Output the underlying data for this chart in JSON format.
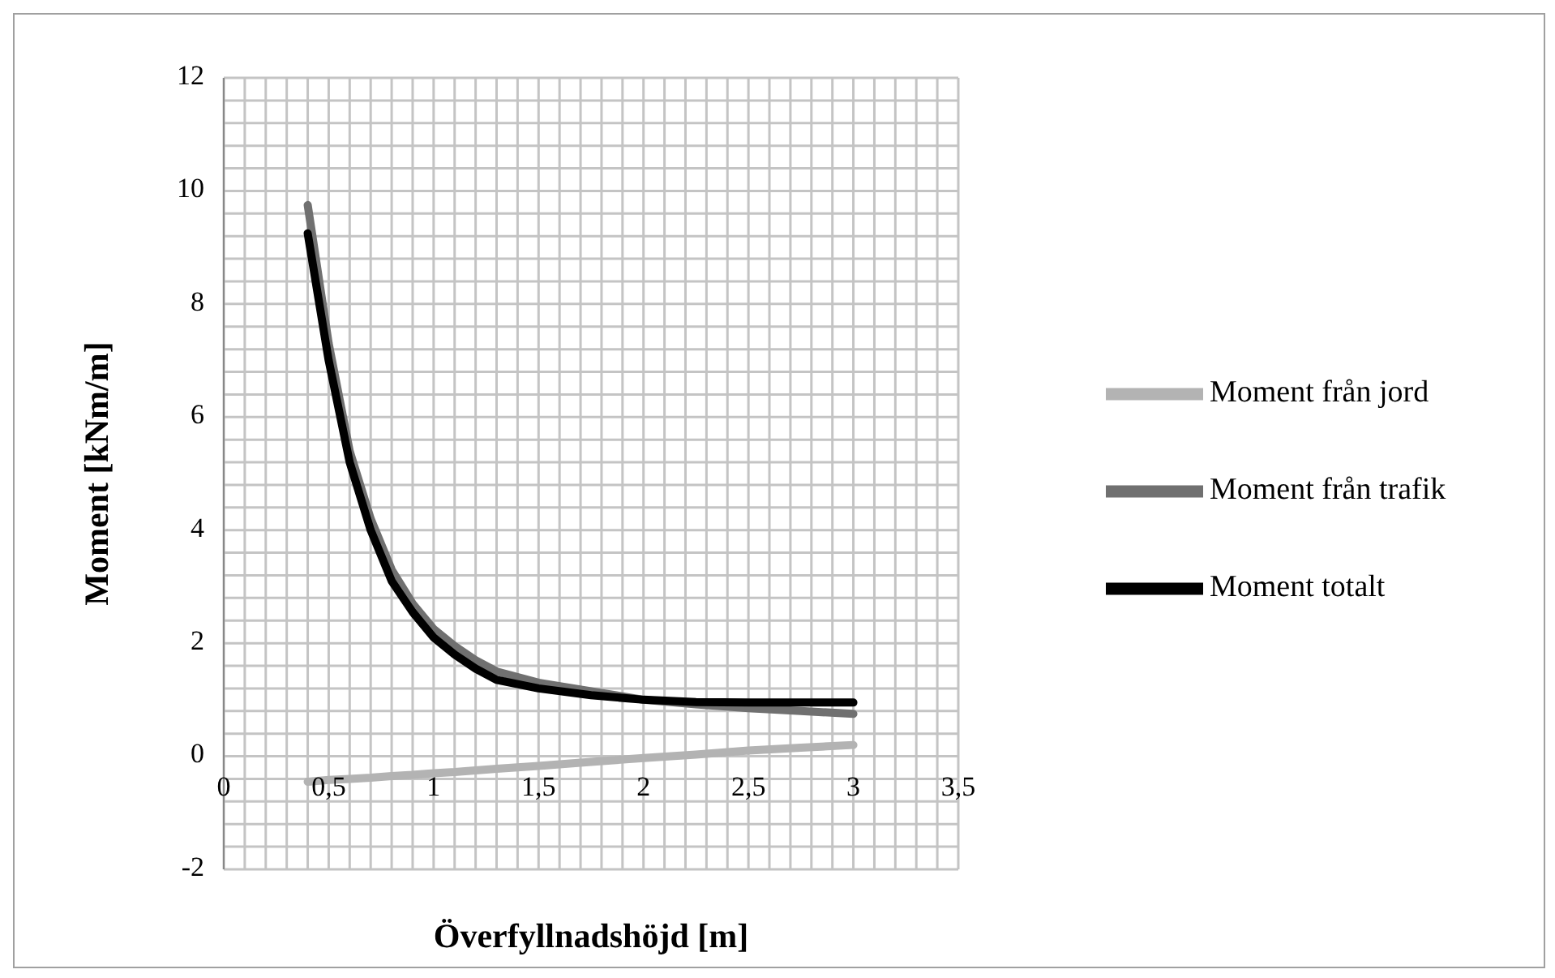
{
  "chart_data": {
    "type": "line",
    "xlabel": "Överfyllnadshöjd [m]",
    "ylabel": "Moment [kNm/m]",
    "x": [
      0.4,
      0.5,
      0.6,
      0.7,
      0.8,
      0.9,
      1.0,
      1.1,
      1.2,
      1.3,
      1.5,
      1.75,
      2.0,
      2.25,
      2.5,
      2.75,
      3.0
    ],
    "series": [
      {
        "name": "Moment från jord",
        "color": "#b3b3b3",
        "values": [
          -0.45,
          -0.42,
          -0.4,
          -0.38,
          -0.35,
          -0.33,
          -0.3,
          -0.28,
          -0.25,
          -0.22,
          -0.17,
          -0.1,
          -0.03,
          0.03,
          0.1,
          0.15,
          0.2
        ]
      },
      {
        "name": "Moment från trafik",
        "color": "#707070",
        "values": [
          9.75,
          7.3,
          5.4,
          4.2,
          3.3,
          2.7,
          2.25,
          1.95,
          1.7,
          1.5,
          1.3,
          1.15,
          1.0,
          0.92,
          0.85,
          0.8,
          0.75
        ]
      },
      {
        "name": "Moment totalt",
        "color": "#000000",
        "values": [
          9.25,
          7.0,
          5.2,
          4.0,
          3.1,
          2.55,
          2.1,
          1.8,
          1.55,
          1.35,
          1.2,
          1.08,
          1.0,
          0.96,
          0.95,
          0.95,
          0.95
        ]
      }
    ],
    "xlim": [
      0,
      3.5
    ],
    "xticks": [
      0,
      {
        "value": 0.1,
        "label": null
      },
      {
        "value": 0.2,
        "label": null
      },
      {
        "value": 0.3,
        "label": null
      },
      {
        "value": 0.4,
        "label": null
      },
      {
        "value": 0.5,
        "label": "0,5"
      },
      {
        "value": 0.6,
        "label": null
      },
      {
        "value": 0.7,
        "label": null
      },
      {
        "value": 0.8,
        "label": null
      },
      {
        "value": 0.9,
        "label": null
      },
      1,
      {
        "value": 1.1,
        "label": null
      },
      {
        "value": 1.2,
        "label": null
      },
      {
        "value": 1.3,
        "label": null
      },
      {
        "value": 1.4,
        "label": null
      },
      {
        "value": 1.5,
        "label": "1,5"
      },
      {
        "value": 1.6,
        "label": null
      },
      {
        "value": 1.7,
        "label": null
      },
      {
        "value": 1.8,
        "label": null
      },
      {
        "value": 1.9,
        "label": null
      },
      2,
      {
        "value": 2.1,
        "label": null
      },
      {
        "value": 2.2,
        "label": null
      },
      {
        "value": 2.3,
        "label": null
      },
      {
        "value": 2.4,
        "label": null
      },
      {
        "value": 2.5,
        "label": "2,5"
      },
      {
        "value": 2.6,
        "label": null
      },
      {
        "value": 2.7,
        "label": null
      },
      {
        "value": 2.8,
        "label": null
      },
      {
        "value": 2.9,
        "label": null
      },
      3,
      {
        "value": 3.1,
        "label": null
      },
      {
        "value": 3.2,
        "label": null
      },
      {
        "value": 3.3,
        "label": null
      },
      {
        "value": 3.4,
        "label": null
      },
      {
        "value": 3.5,
        "label": "3,5"
      }
    ],
    "ylim": [
      -2,
      12
    ],
    "yticks": [
      -2,
      {
        "value": -1.6,
        "label": null
      },
      {
        "value": -1.2,
        "label": null
      },
      {
        "value": -0.8,
        "label": null
      },
      {
        "value": -0.4,
        "label": null
      },
      0,
      {
        "value": 0.4,
        "label": null
      },
      {
        "value": 0.8,
        "label": null
      },
      {
        "value": 1.2,
        "label": null
      },
      {
        "value": 1.6,
        "label": null
      },
      2,
      {
        "value": 2.4,
        "label": null
      },
      {
        "value": 2.8,
        "label": null
      },
      {
        "value": 3.2,
        "label": null
      },
      {
        "value": 3.6,
        "label": null
      },
      4,
      {
        "value": 4.4,
        "label": null
      },
      {
        "value": 4.8,
        "label": null
      },
      {
        "value": 5.2,
        "label": null
      },
      {
        "value": 5.6,
        "label": null
      },
      6,
      {
        "value": 6.4,
        "label": null
      },
      {
        "value": 6.8,
        "label": null
      },
      {
        "value": 7.2,
        "label": null
      },
      {
        "value": 7.6,
        "label": null
      },
      8,
      {
        "value": 8.4,
        "label": null
      },
      {
        "value": 8.8,
        "label": null
      },
      {
        "value": 9.2,
        "label": null
      },
      {
        "value": 9.6,
        "label": null
      },
      10,
      {
        "value": 10.4,
        "label": null
      },
      {
        "value": 10.8,
        "label": null
      },
      {
        "value": 11.2,
        "label": null
      },
      {
        "value": 11.6,
        "label": null
      },
      12
    ],
    "grid": true,
    "legend": "right"
  }
}
